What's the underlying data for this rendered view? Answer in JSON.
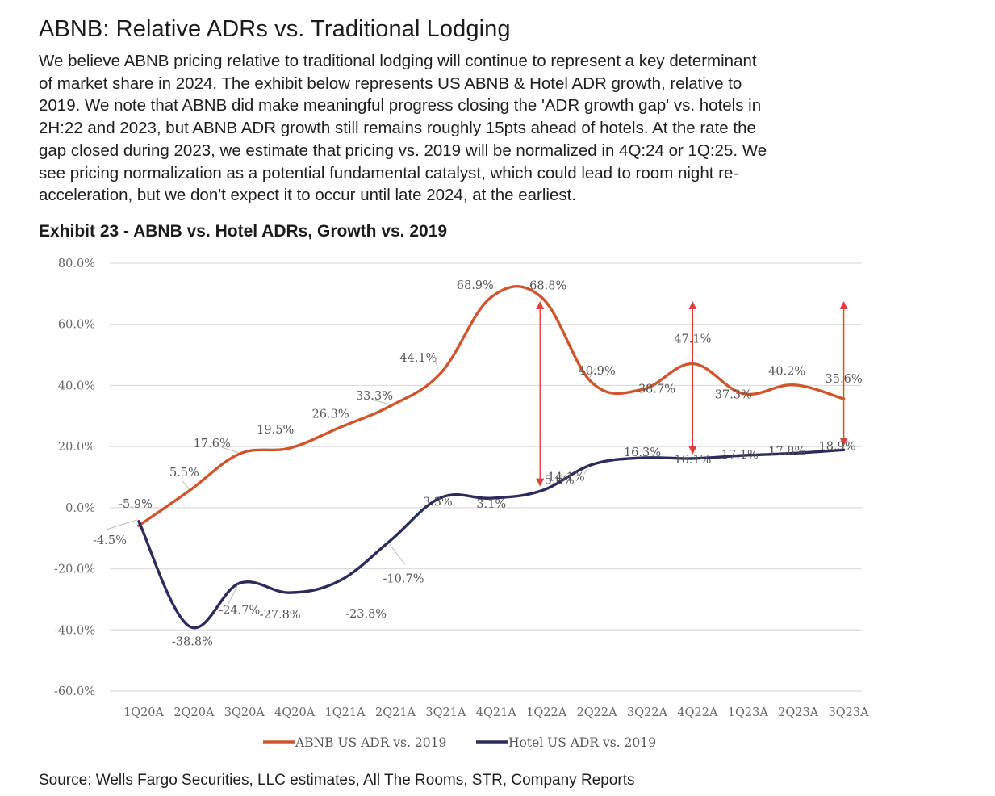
{
  "header": {
    "title": "ABNB: Relative ADRs vs. Traditional Lodging",
    "body_lines": [
      "We believe ABNB pricing relative to traditional lodging will continue to represent a key determinant",
      "of market share in 2024. The exhibit below represents US ABNB & Hotel ADR growth, relative to",
      "2019. We note that ABNB did make meaningful progress closing the 'ADR growth gap' vs. hotels in",
      "2H:22 and 2023, but ABNB ADR growth still remains roughly 15pts ahead of hotels. At the rate the",
      "gap closed during 2023, we estimate that pricing vs. 2019 will be normalized in 4Q:24 or 1Q:25. We",
      "see pricing normalization as a potential fundamental catalyst, which could lead to room night re-",
      "acceleration, but we don't expect it to occur until late 2024, at the earliest."
    ]
  },
  "chart_data": {
    "type": "line",
    "title": "Exhibit 23 - ABNB vs. Hotel ADRs, Growth vs. 2019",
    "categories": [
      "1Q20A",
      "2Q20A",
      "3Q20A",
      "4Q20A",
      "1Q21A",
      "2Q21A",
      "3Q21A",
      "4Q21A",
      "1Q22A",
      "2Q22A",
      "3Q22A",
      "4Q22A",
      "1Q23A",
      "2Q23A",
      "3Q23A"
    ],
    "series": [
      {
        "name": "ABNB US ADR vs. 2019",
        "color": "#d0552c",
        "values": [
          -5.9,
          5.5,
          17.6,
          19.5,
          26.3,
          33.3,
          44.1,
          68.9,
          68.8,
          40.9,
          38.7,
          47.1,
          37.3,
          40.2,
          35.6
        ]
      },
      {
        "name": "Hotel US ADR vs. 2019",
        "color": "#2b2b5c",
        "values": [
          -4.5,
          -38.8,
          -24.7,
          -27.8,
          -23.8,
          -10.7,
          3.3,
          3.1,
          5.6,
          14.1,
          16.3,
          16.1,
          17.1,
          17.8,
          18.9
        ]
      }
    ],
    "y_ticks": [
      "80.0%",
      "60.0%",
      "40.0%",
      "20.0%",
      "0.0%",
      "-20.0%",
      "-40.0%",
      "-60.0%"
    ],
    "ylim": [
      -60,
      80
    ],
    "grid": true,
    "legend": "bottom-center",
    "gap_arrows_at": [
      "1Q22A",
      "4Q22A",
      "3Q23A"
    ],
    "arrow_color": "#d9433a"
  },
  "footer": {
    "source": "Source: Wells Fargo Securities, LLC estimates, All The Rooms, STR, Company Reports"
  }
}
